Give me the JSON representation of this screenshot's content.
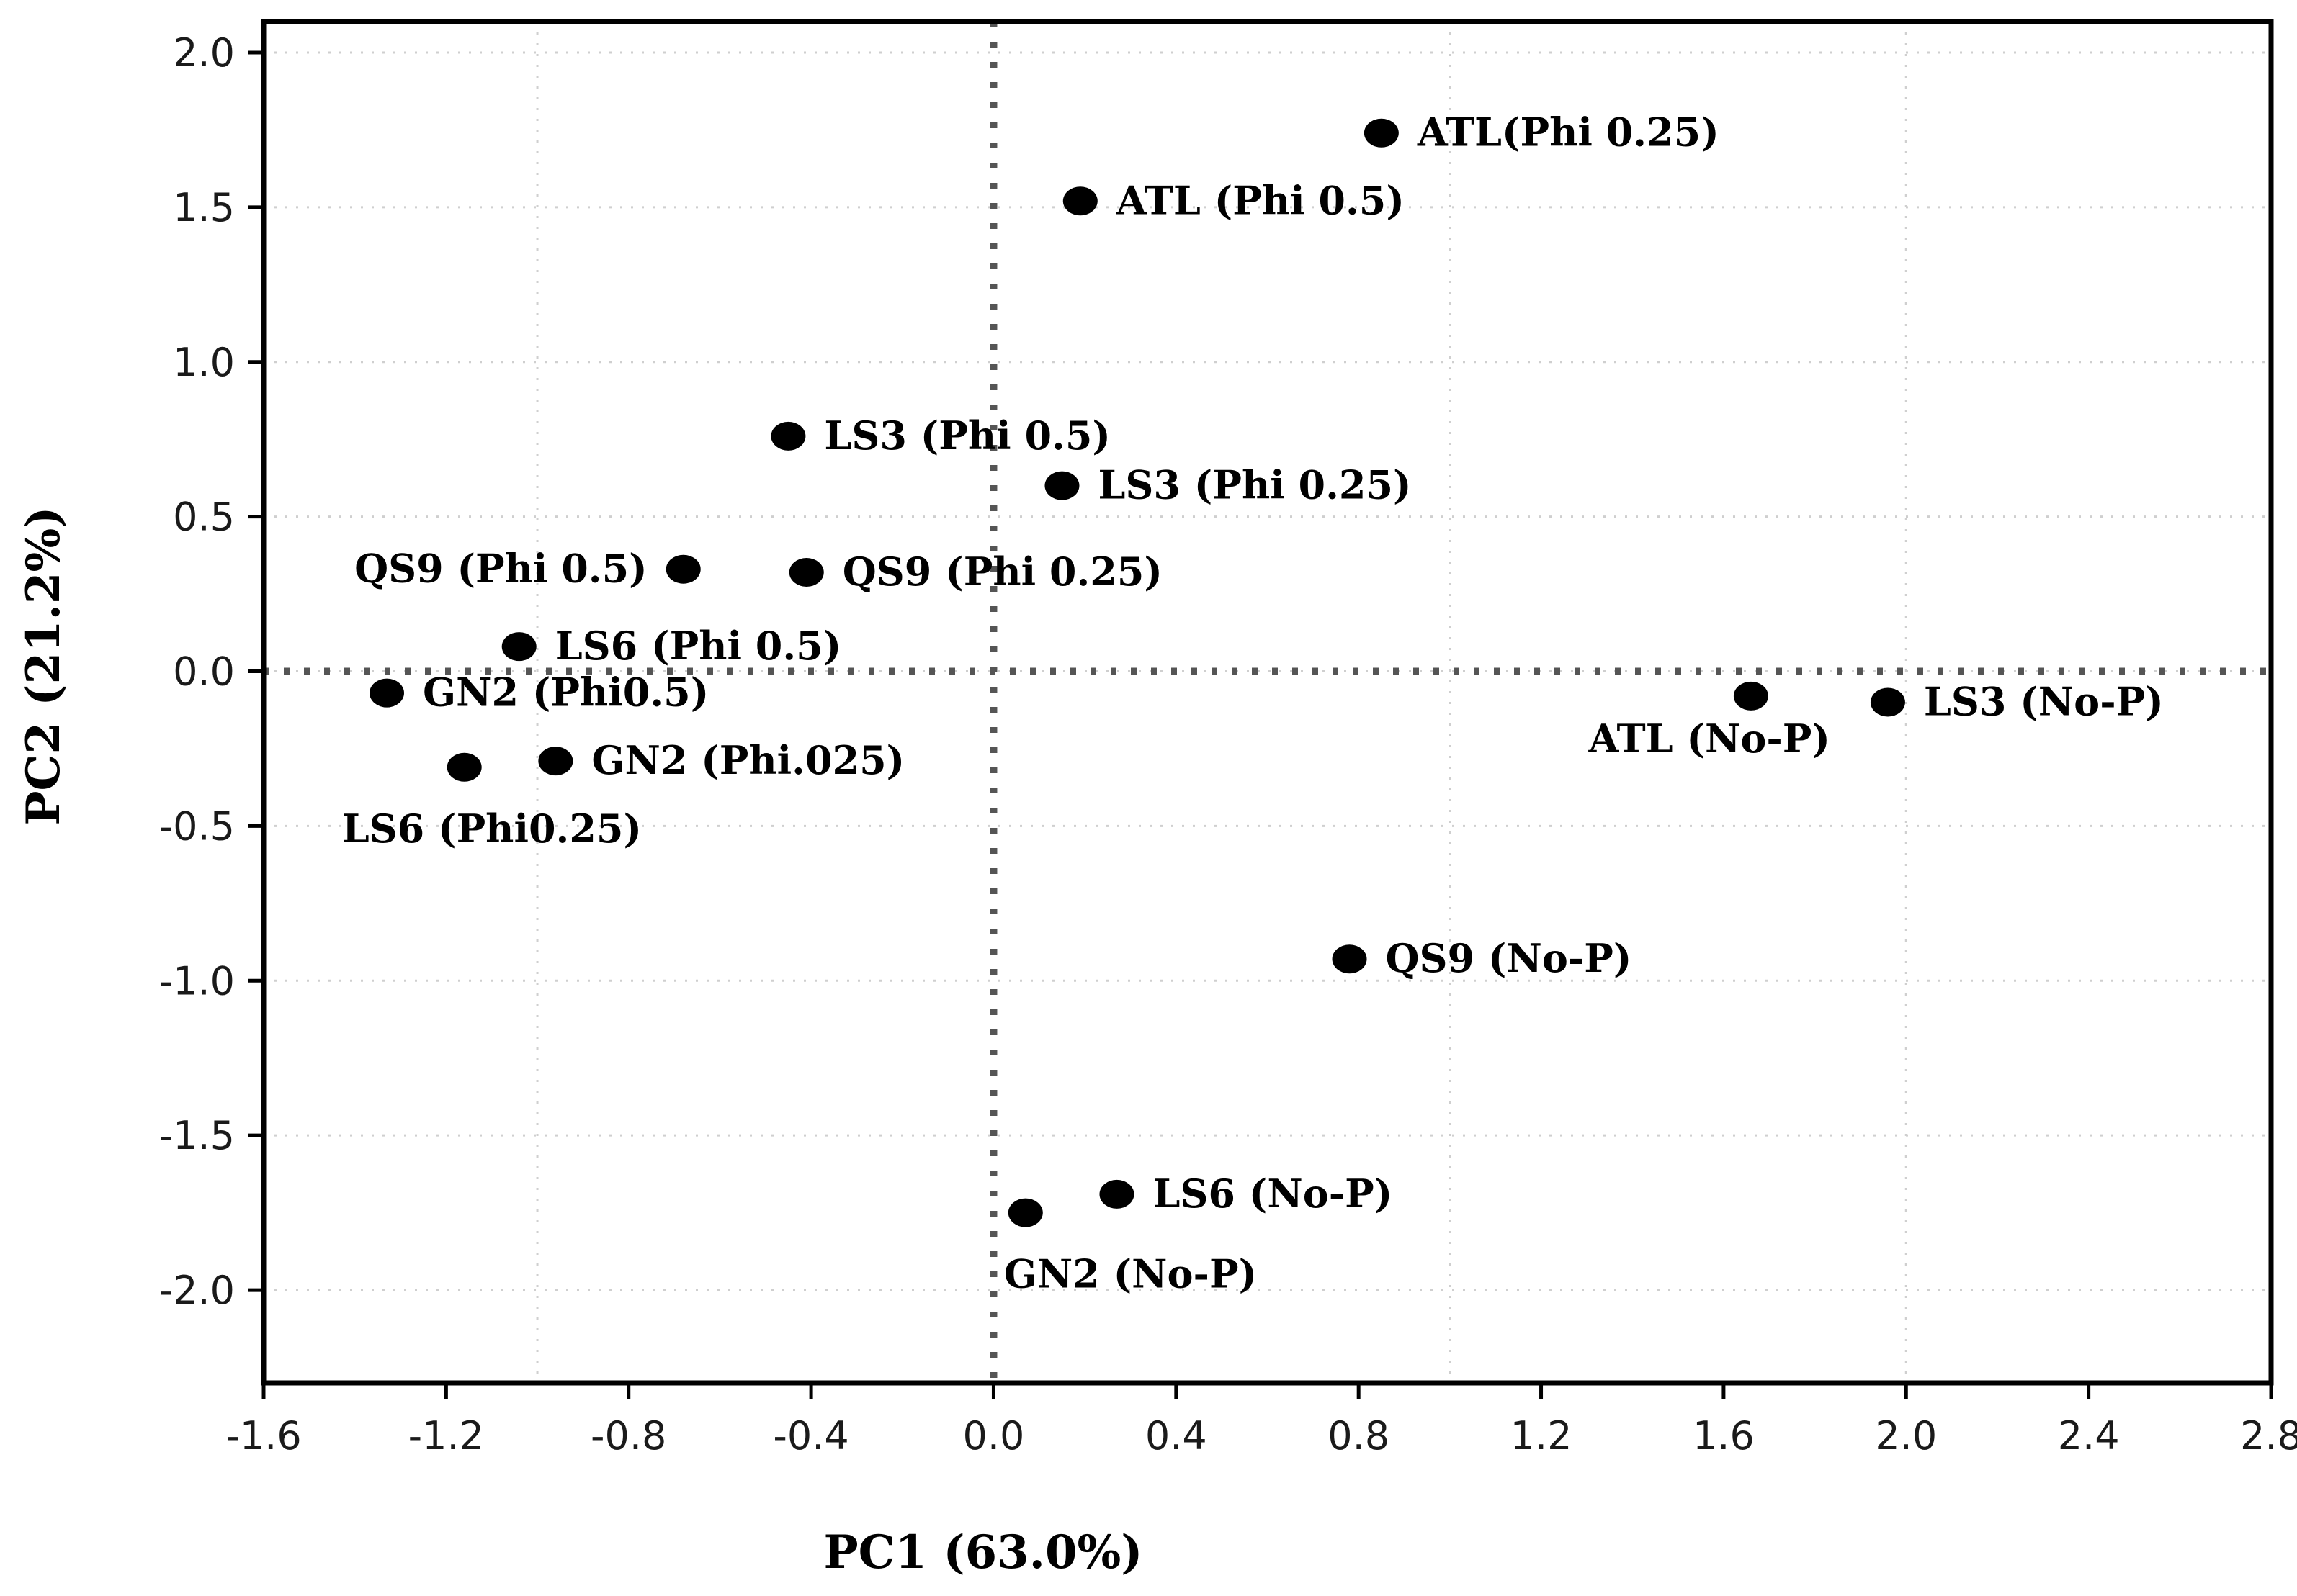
{
  "chart_data": {
    "type": "scatter",
    "title": "",
    "xlabel": "PC1 (63.0%)",
    "ylabel": "PC2 (21.2%)",
    "xlim": [
      -1.6,
      2.8
    ],
    "ylim": [
      -2.3,
      2.1
    ],
    "x_ticks": [
      -1.6,
      -1.2,
      -0.8,
      -0.4,
      0.0,
      0.4,
      0.8,
      1.2,
      1.6,
      2.0,
      2.4,
      2.8
    ],
    "x_tick_labels": [
      "-1.6",
      "-1.2",
      "-0.8",
      "-0.4",
      "0.0",
      "0.4",
      "0.8",
      "1.2",
      "1.6",
      "2.0",
      "2.4",
      "2.8"
    ],
    "y_ticks": [
      2.0,
      1.5,
      1.0,
      0.5,
      0.0,
      -0.5,
      -1.0,
      -1.5,
      -2.0
    ],
    "y_tick_labels": [
      "2.0",
      "1.5",
      "1.0",
      "0.5",
      "0.0",
      "-0.5",
      "-1.0",
      "-1.5",
      "-2.0"
    ],
    "reference_lines": {
      "x": 0,
      "y": 0
    },
    "minor_grid_x": [
      -1.0,
      1.0,
      2.0
    ],
    "points": [
      {
        "label": "ATL(Phi 0.25)",
        "x": 0.85,
        "y": 1.74,
        "label_side": "right"
      },
      {
        "label": "ATL (Phi 0.5)",
        "x": 0.19,
        "y": 1.52,
        "label_side": "right"
      },
      {
        "label": "LS3 (Phi 0.5)",
        "x": -0.45,
        "y": 0.76,
        "label_side": "right"
      },
      {
        "label": "LS3 (Phi 0.25)",
        "x": 0.15,
        "y": 0.6,
        "label_side": "right"
      },
      {
        "label": "QS9 (Phi 0.5)",
        "x": -0.68,
        "y": 0.33,
        "label_side": "left"
      },
      {
        "label": "QS9 (Phi 0.25)",
        "x": -0.41,
        "y": 0.32,
        "label_side": "right"
      },
      {
        "label": "LS6 (Phi 0.5)",
        "x": -1.04,
        "y": 0.08,
        "label_side": "right"
      },
      {
        "label": "GN2 (Phi0.5)",
        "x": -1.33,
        "y": -0.07,
        "label_side": "right"
      },
      {
        "label": "GN2 (Phi.025)",
        "x": -0.96,
        "y": -0.29,
        "label_side": "right"
      },
      {
        "label": "LS6 (Phi0.25)",
        "x": -1.16,
        "y": -0.31,
        "label_side": "below"
      },
      {
        "label": "ATL (No-P)",
        "x": 1.66,
        "y": -0.08,
        "label_side": "below-left"
      },
      {
        "label": "LS3 (No-P)",
        "x": 1.96,
        "y": -0.1,
        "label_side": "right"
      },
      {
        "label": "QS9 (No-P)",
        "x": 0.78,
        "y": -0.93,
        "label_side": "right"
      },
      {
        "label": "LS6 (No-P)",
        "x": 0.27,
        "y": -1.69,
        "label_side": "right"
      },
      {
        "label": "GN2 (No-P)",
        "x": 0.07,
        "y": -1.75,
        "label_side": "below"
      }
    ]
  }
}
